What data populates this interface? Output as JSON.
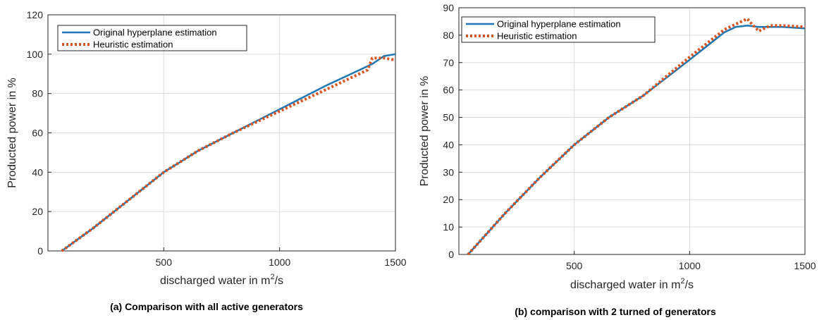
{
  "colors": {
    "series_a": "#1f77b4",
    "series_b": "#d9531e"
  },
  "chart_data": [
    {
      "type": "line",
      "caption": "(a) Comparison with all active generators",
      "xlabel": "discharged water in m",
      "xlabel_sup": "2",
      "xlabel_suffix": "/s",
      "ylabel": "Producted power in %",
      "xlim": [
        0,
        1500
      ],
      "ylim": [
        0,
        120
      ],
      "xticks": [
        500,
        1000,
        1500
      ],
      "yticks": [
        0,
        20,
        40,
        60,
        80,
        100,
        120
      ],
      "grid": true,
      "legend_position": "top-left",
      "series": [
        {
          "name": "Original hyperplane estimation",
          "style": "solid",
          "x": [
            60,
            200,
            350,
            500,
            650,
            800,
            1000,
            1200,
            1400,
            1450,
            1500
          ],
          "y": [
            0,
            12,
            26,
            40,
            51,
            60,
            72,
            84,
            95,
            99,
            100
          ]
        },
        {
          "name": "Heuristic estimation",
          "style": "dotted",
          "x": [
            60,
            200,
            350,
            500,
            650,
            800,
            1000,
            1200,
            1380,
            1400,
            1450,
            1500
          ],
          "y": [
            0,
            12,
            26,
            40,
            51,
            60,
            71,
            82,
            92,
            98,
            98,
            97
          ]
        }
      ]
    },
    {
      "type": "line",
      "caption": "(b) comparison with 2 turned of generators",
      "xlabel": "discharged water in m",
      "xlabel_sup": "2",
      "xlabel_suffix": "/s",
      "ylabel": "Producted power in %",
      "xlim": [
        0,
        1500
      ],
      "ylim": [
        0,
        90
      ],
      "xticks": [
        500,
        1000,
        1500
      ],
      "yticks": [
        0,
        10,
        20,
        30,
        40,
        50,
        60,
        70,
        80,
        90
      ],
      "grid": true,
      "legend_position": "top-left",
      "series": [
        {
          "name": "Original hyperplane estimation",
          "style": "solid",
          "x": [
            40,
            200,
            350,
            500,
            650,
            800,
            1000,
            1150,
            1200,
            1250,
            1300,
            1400,
            1500
          ],
          "y": [
            0,
            15,
            28,
            40,
            50,
            58,
            71,
            81,
            83,
            83.5,
            83,
            83,
            82.5
          ]
        },
        {
          "name": "Heuristic estimation",
          "style": "dotted",
          "x": [
            40,
            200,
            350,
            500,
            650,
            800,
            1000,
            1150,
            1200,
            1250,
            1270,
            1300,
            1350,
            1400,
            1500
          ],
          "y": [
            0,
            15,
            28,
            40,
            50,
            58,
            72,
            82,
            84,
            86,
            84,
            81.5,
            83.5,
            83.5,
            83
          ]
        }
      ]
    }
  ]
}
